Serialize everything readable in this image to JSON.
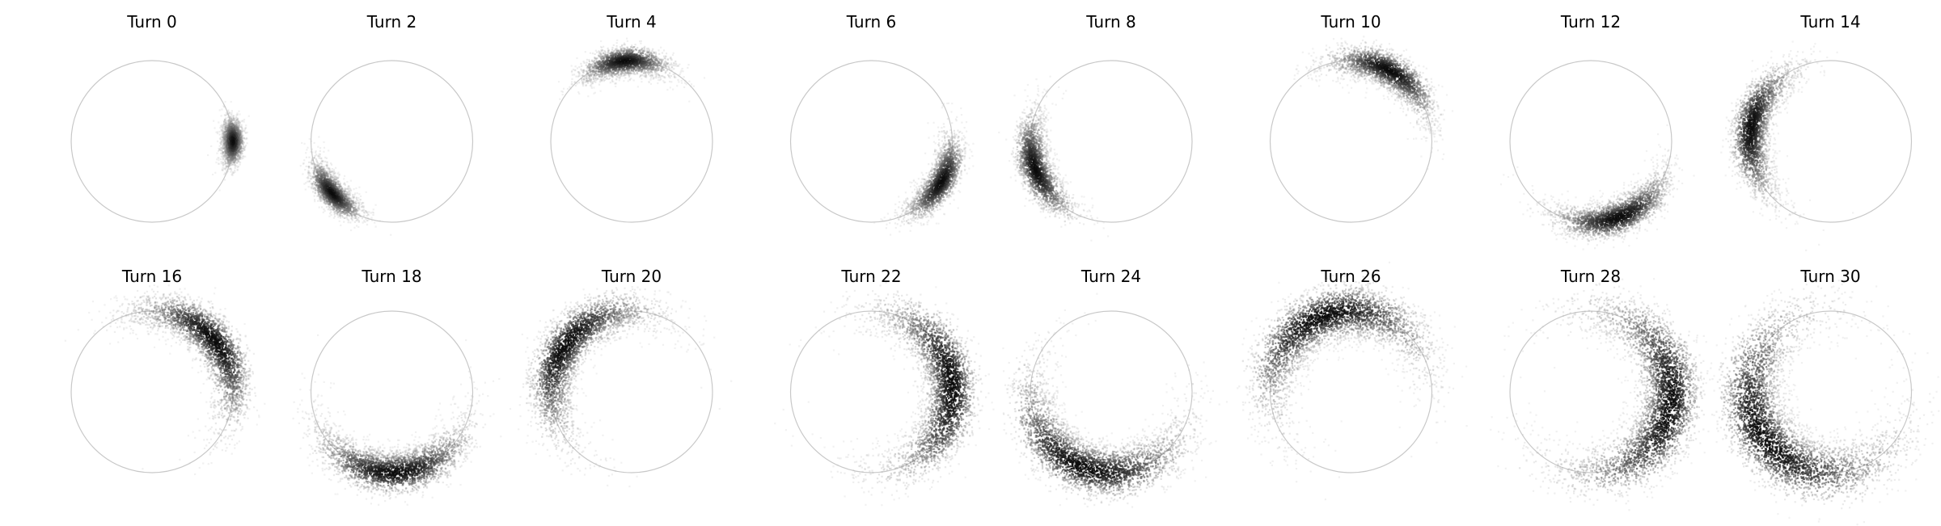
{
  "chart_data": {
    "type": "heatmap",
    "description_free": true,
    "panels": [
      {
        "title": "Turn 0",
        "turn": 0,
        "center_deg": 0,
        "span_deg": 40,
        "radial_offset": 0.0
      },
      {
        "title": "Turn 2",
        "turn": 2,
        "center_deg": 221,
        "span_deg": 60,
        "radial_offset": -0.02
      },
      {
        "title": "Turn 4",
        "turn": 4,
        "center_deg": 95,
        "span_deg": 75,
        "radial_offset": 0.0
      },
      {
        "title": "Turn 6",
        "turn": 6,
        "center_deg": 330,
        "span_deg": 80,
        "radial_offset": 0.0
      },
      {
        "title": "Turn 8",
        "turn": 8,
        "center_deg": 200,
        "span_deg": 95,
        "radial_offset": 0.0
      },
      {
        "title": "Turn 10",
        "turn": 10,
        "center_deg": 62,
        "span_deg": 105,
        "radial_offset": 0.0
      },
      {
        "title": "Turn 12",
        "turn": 12,
        "center_deg": 290,
        "span_deg": 110,
        "radial_offset": 0.0
      },
      {
        "title": "Turn 14",
        "turn": 14,
        "center_deg": 170,
        "span_deg": 125,
        "radial_offset": 0.0
      },
      {
        "title": "Turn 16",
        "turn": 16,
        "center_deg": 40,
        "span_deg": 150,
        "radial_offset": 0.0
      },
      {
        "title": "Turn 18",
        "turn": 18,
        "center_deg": 272,
        "span_deg": 150,
        "radial_offset": 0.0
      },
      {
        "title": "Turn 20",
        "turn": 20,
        "center_deg": 145,
        "span_deg": 170,
        "radial_offset": 0.0
      },
      {
        "title": "Turn 22",
        "turn": 22,
        "center_deg": 5,
        "span_deg": 200,
        "radial_offset": 0.0
      },
      {
        "title": "Turn 24",
        "turn": 24,
        "center_deg": 250,
        "span_deg": 200,
        "radial_offset": 0.0
      },
      {
        "title": "Turn 26",
        "turn": 26,
        "center_deg": 110,
        "span_deg": 210,
        "radial_offset": 0.0
      },
      {
        "title": "Turn 28",
        "turn": 28,
        "center_deg": 350,
        "span_deg": 240,
        "radial_offset": 0.0
      },
      {
        "title": "Turn 30",
        "turn": 30,
        "center_deg": 215,
        "span_deg": 260,
        "radial_offset": 0.0
      }
    ],
    "reference_circle": true,
    "colormap": "greys",
    "grid": false,
    "axes_visible": false
  }
}
